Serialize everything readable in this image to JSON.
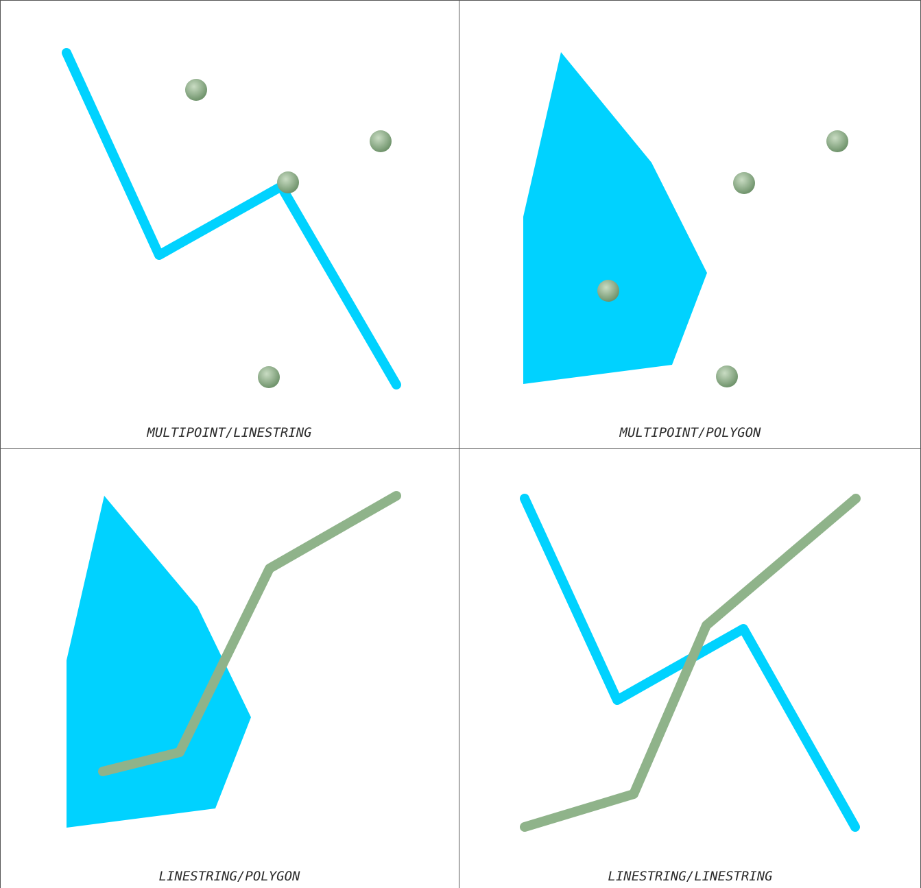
{
  "colors": {
    "geometry_a": "#00d2ff",
    "geometry_b": "#8fb38a",
    "geometry_b_light": "#c9dcc3",
    "geometry_b_dark": "#6f936b",
    "border": "#555555",
    "background": "#ffffff"
  },
  "panels": [
    {
      "caption": {
        "left": "MULTIPOINT",
        "sep": "/",
        "right": "LINESTRING"
      },
      "a": {
        "type": "LINESTRING",
        "coords": [
          [
            97,
            77
          ],
          [
            232,
            372
          ],
          [
            410,
            272
          ],
          [
            578,
            561
          ]
        ]
      },
      "b": {
        "type": "MULTIPOINT",
        "coords": [
          [
            286,
            131
          ],
          [
            555,
            206
          ],
          [
            420,
            266
          ],
          [
            392,
            550
          ]
        ]
      }
    },
    {
      "caption": {
        "left": "MULTIPOINT",
        "sep": "/",
        "right": "POLYGON"
      },
      "a": {
        "type": "POLYGON",
        "coords": [
          [
            148,
            76
          ],
          [
            280,
            237
          ],
          [
            361,
            398
          ],
          [
            310,
            532
          ],
          [
            93,
            560
          ],
          [
            93,
            316
          ]
        ]
      },
      "b": {
        "type": "MULTIPOINT",
        "coords": [
          [
            551,
            206
          ],
          [
            415,
            267
          ],
          [
            217,
            424
          ],
          [
            390,
            549
          ]
        ]
      }
    },
    {
      "caption": {
        "left": "LINESTRING",
        "sep": "/",
        "right": "POLYGON"
      },
      "a": {
        "type": "POLYGON",
        "coords": [
          [
            152,
            68
          ],
          [
            288,
            230
          ],
          [
            366,
            391
          ],
          [
            314,
            524
          ],
          [
            97,
            552
          ],
          [
            97,
            308
          ]
        ]
      },
      "b": {
        "type": "LINESTRING",
        "coords": [
          [
            150,
            470
          ],
          [
            262,
            442
          ],
          [
            393,
            174
          ],
          [
            578,
            68
          ]
        ]
      }
    },
    {
      "caption": {
        "left": "LINESTRING",
        "sep": "/",
        "right": "LINESTRING"
      },
      "a": {
        "type": "LINESTRING",
        "coords": [
          [
            95,
            72
          ],
          [
            230,
            366
          ],
          [
            414,
            262
          ],
          [
            577,
            551
          ]
        ]
      },
      "b": {
        "type": "LINESTRING",
        "coords": [
          [
            95,
            551
          ],
          [
            254,
            503
          ],
          [
            360,
            257
          ],
          [
            578,
            72
          ]
        ]
      }
    }
  ]
}
